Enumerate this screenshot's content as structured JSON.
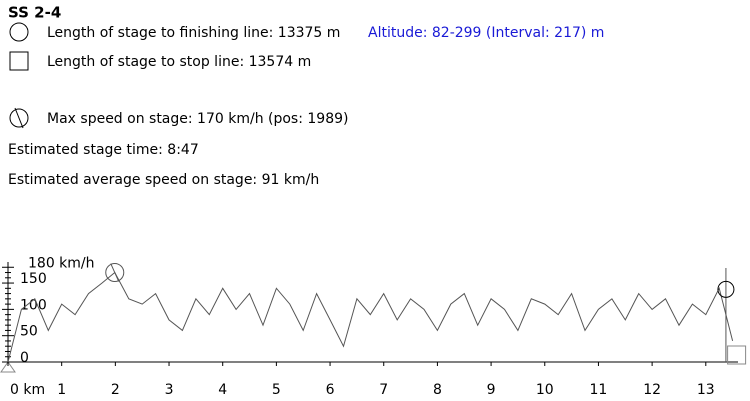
{
  "header": {
    "title": "SS 2-4",
    "finish_length": "Length of stage to finishing line: 13375 m",
    "altitude": "Altitude: 82-299 (Interval: 217) m",
    "stop_length": "Length of stage to stop line: 13574 m",
    "max_speed": "Max speed on stage: 170 km/h (pos: 1989)",
    "stage_time": "Estimated stage time: 8:47",
    "avg_speed": "Estimated average speed on stage: 91 km/h"
  },
  "chart_data": {
    "type": "line",
    "color": "#555555",
    "x": [
      0,
      0.25,
      0.5,
      0.75,
      1,
      1.25,
      1.5,
      1.75,
      1.989,
      2.25,
      2.5,
      2.75,
      3,
      3.25,
      3.5,
      3.75,
      4,
      4.25,
      4.5,
      4.75,
      5,
      5.25,
      5.5,
      5.75,
      6,
      6.25,
      6.5,
      6.75,
      7,
      7.25,
      7.5,
      7.75,
      8,
      8.25,
      8.5,
      8.75,
      9,
      9.25,
      9.5,
      9.75,
      10,
      10.25,
      10.5,
      10.75,
      11,
      11.25,
      11.5,
      11.75,
      12,
      12.25,
      12.5,
      12.75,
      13,
      13.25,
      13.5
    ],
    "values": [
      0,
      100,
      120,
      60,
      110,
      90,
      130,
      150,
      170,
      120,
      110,
      130,
      80,
      60,
      120,
      90,
      140,
      100,
      130,
      70,
      140,
      110,
      60,
      130,
      80,
      30,
      120,
      90,
      130,
      80,
      120,
      100,
      60,
      110,
      130,
      70,
      120,
      100,
      60,
      120,
      110,
      90,
      130,
      60,
      100,
      120,
      80,
      130,
      100,
      120,
      70,
      110,
      90,
      140,
      40
    ],
    "xlim": [
      0,
      13.6
    ],
    "ylim": [
      0,
      190
    ],
    "xticks": [
      {
        "value": 0,
        "label": "0 km"
      },
      1,
      2,
      3,
      4,
      5,
      6,
      7,
      8,
      9,
      10,
      11,
      12,
      13
    ],
    "yticks": [
      0,
      50,
      100,
      150,
      {
        "value": 180,
        "label": "180 km/h"
      }
    ],
    "yticks_minor": [
      10,
      20,
      30,
      40,
      60,
      70,
      80,
      90,
      110,
      120,
      130,
      140,
      160,
      170
    ],
    "max": {
      "x": 1.989,
      "y": 170
    },
    "finish": {
      "x": 13.375,
      "y": 138
    },
    "stop": {
      "x": 13.574,
      "y": 0
    }
  }
}
